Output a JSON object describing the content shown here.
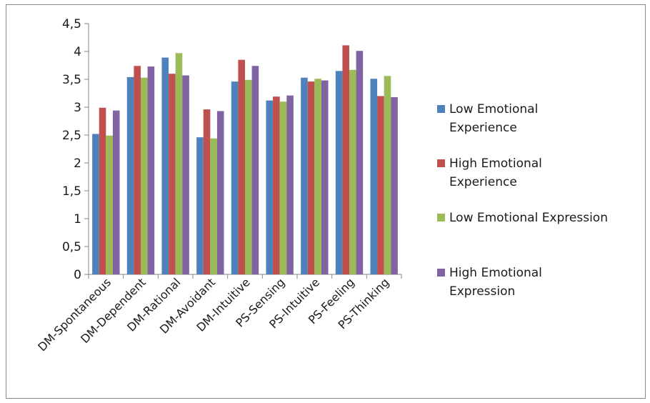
{
  "chart_data": {
    "type": "bar",
    "title": "",
    "xlabel": "",
    "ylabel": "",
    "ylim": [
      0,
      4.5
    ],
    "yticks": [
      "0",
      "0,5",
      "1",
      "1,5",
      "2",
      "2,5",
      "3",
      "3,5",
      "4",
      "4,5"
    ],
    "grid": false,
    "legend_position": "right",
    "categories": [
      "DM-Spontaneous",
      "DM-Dependent",
      "DM-Rational",
      "DM-Avoidant",
      "DM-Intuitive",
      "PS-Sensing",
      "PS-Intuitive",
      "PS-Feeling",
      "PS-Thinking"
    ],
    "series": [
      {
        "name": "Low Emotional Experience",
        "legend_lines": [
          "Low Emotional",
          "Experience"
        ],
        "color": "#4f81bd",
        "values": [
          2.52,
          3.54,
          3.89,
          2.46,
          3.46,
          3.12,
          3.53,
          3.65,
          3.51
        ]
      },
      {
        "name": "High Emotional Experience",
        "legend_lines": [
          "High Emotional",
          "Experience"
        ],
        "color": "#c0504d",
        "values": [
          2.99,
          3.74,
          3.6,
          2.96,
          3.85,
          3.19,
          3.46,
          4.11,
          3.2
        ]
      },
      {
        "name": "Low Emotional Expression",
        "legend_lines": [
          "Low Emotional Expression"
        ],
        "color": "#9bbb59",
        "values": [
          2.49,
          3.53,
          3.97,
          2.44,
          3.49,
          3.1,
          3.51,
          3.67,
          3.56
        ]
      },
      {
        "name": "High Emotional Expression",
        "legend_lines": [
          "High Emotional",
          "Expression"
        ],
        "color": "#8064a2",
        "values": [
          2.94,
          3.73,
          3.57,
          2.93,
          3.74,
          3.21,
          3.48,
          4.01,
          3.18
        ]
      }
    ]
  }
}
